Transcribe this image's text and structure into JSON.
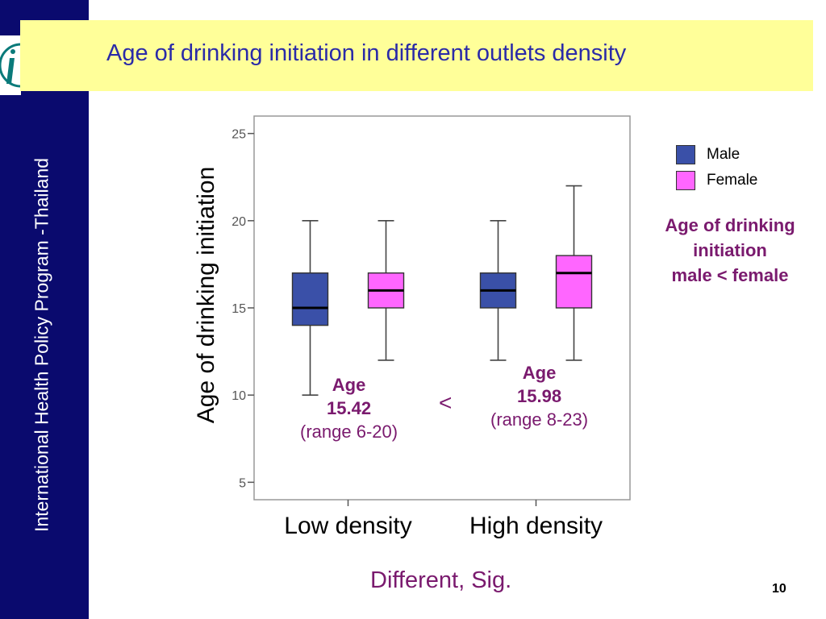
{
  "slide": {
    "title": "Age of drinking initiation in different outlets density",
    "sidebar_text": "International Health Policy Program -Thailand",
    "footer": "Different, Sig.",
    "page_number": "10",
    "note_lines": [
      "Age of drinking",
      "initiation",
      "male <  female"
    ],
    "comparison_symbol": "<",
    "annotations": [
      {
        "line1": "Age",
        "line2": "15.42",
        "line3": "(range 6-20)"
      },
      {
        "line1": "Age",
        "line2": "15.98",
        "line3": "(range 8-23)"
      }
    ]
  },
  "chart_data": {
    "type": "box",
    "title": "",
    "xlabel": "",
    "ylabel": "Age of drinking initiation",
    "ylim": [
      4,
      26
    ],
    "yticks": [
      5,
      10,
      15,
      20,
      25
    ],
    "categories": [
      "Low density",
      "High density"
    ],
    "series": [
      {
        "name": "Male",
        "color": "#3a50a8",
        "boxes": [
          {
            "min": 10,
            "q1": 14,
            "median": 15,
            "q3": 17,
            "max": 20
          },
          {
            "min": 12,
            "q1": 15,
            "median": 16,
            "q3": 17,
            "max": 20
          }
        ]
      },
      {
        "name": "Female",
        "color": "#ff66ff",
        "boxes": [
          {
            "min": 12,
            "q1": 15,
            "median": 16,
            "q3": 17,
            "max": 20
          },
          {
            "min": 12,
            "q1": 15,
            "median": 17,
            "q3": 18,
            "max": 22
          }
        ]
      }
    ],
    "legend": "right"
  }
}
